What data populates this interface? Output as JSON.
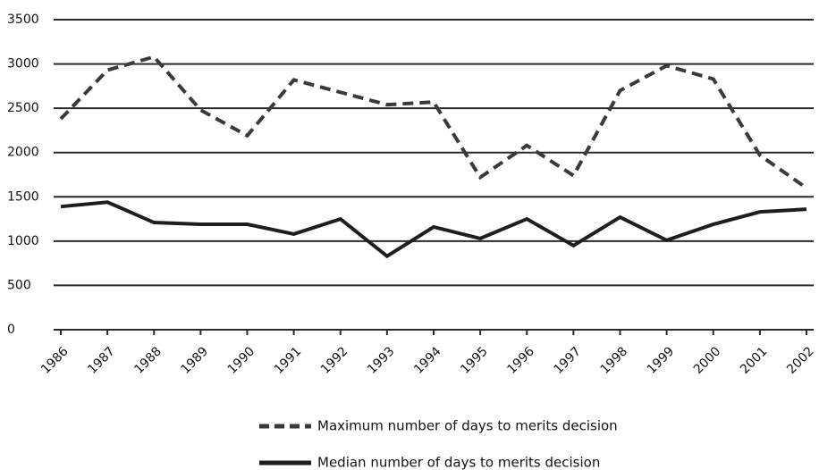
{
  "chart_data": {
    "type": "line",
    "categories": [
      "1986",
      "1987",
      "1988",
      "1989",
      "1990",
      "1991",
      "1992",
      "1993",
      "1994",
      "1995",
      "1996",
      "1997",
      "1998",
      "1999",
      "2000",
      "2001",
      "2002"
    ],
    "series": [
      {
        "name": "Maximum number of days to merits decision",
        "color": "#3a3a3a",
        "dash": true,
        "values": [
          2380,
          2930,
          3080,
          2480,
          2190,
          2820,
          2680,
          2540,
          2570,
          1720,
          2080,
          1740,
          2700,
          2980,
          2830,
          1970,
          1600
        ]
      },
      {
        "name": "Median number of days to merits decision",
        "color": "#1e1e1e",
        "dash": false,
        "values": [
          1390,
          1440,
          1210,
          1190,
          1190,
          1080,
          1250,
          830,
          1160,
          1030,
          1250,
          950,
          1270,
          1010,
          1190,
          1330,
          1360
        ]
      }
    ],
    "ylim": [
      0,
      3500
    ],
    "yticks": [
      0,
      500,
      1000,
      1500,
      2000,
      2500,
      3000,
      3500
    ],
    "grid": true,
    "legend": "bottom"
  }
}
